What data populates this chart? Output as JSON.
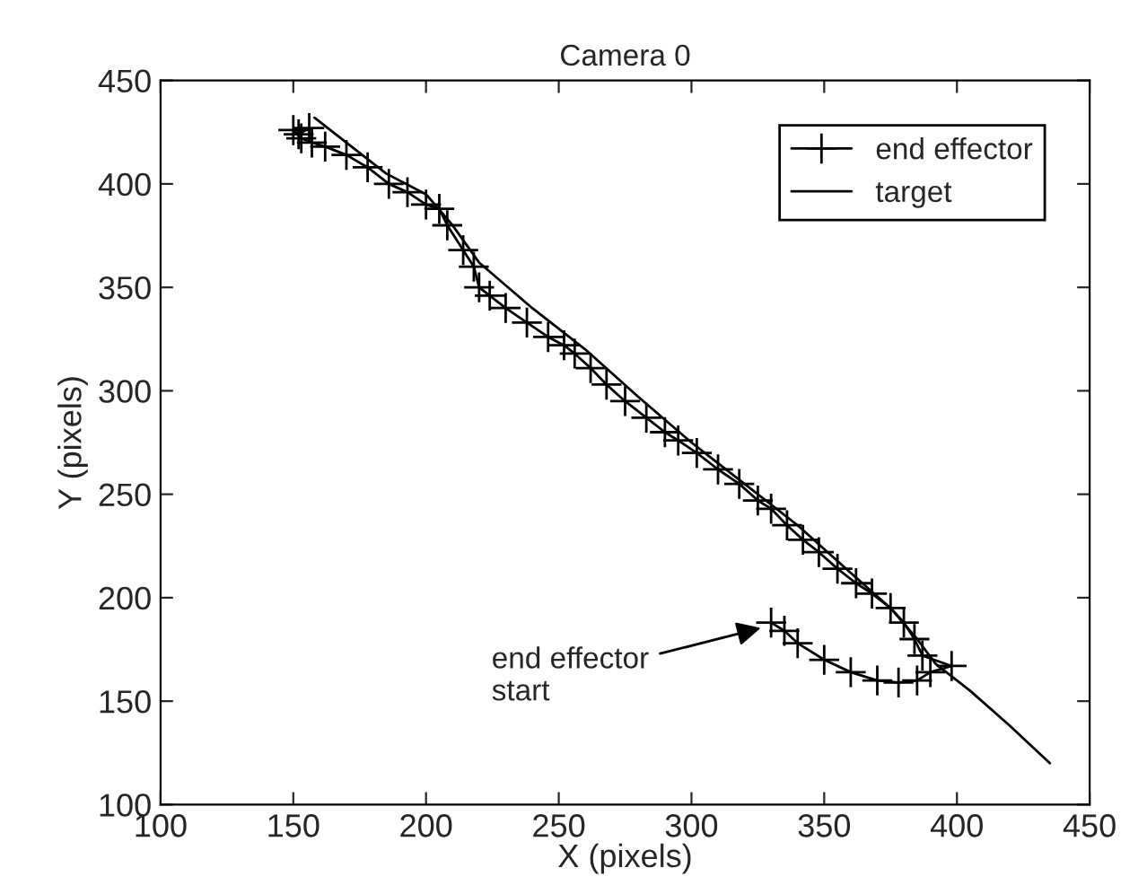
{
  "chart_data": {
    "type": "line",
    "title": "Camera 0",
    "xlabel": "X (pixels)",
    "ylabel": "Y (pixels)",
    "xlim": [
      100,
      450
    ],
    "ylim": [
      100,
      450
    ],
    "xticks": [
      100,
      150,
      200,
      250,
      300,
      350,
      400,
      450
    ],
    "yticks": [
      100,
      150,
      200,
      250,
      300,
      350,
      400,
      450
    ],
    "grid": false,
    "legend": "top right",
    "series": [
      {
        "name": "end effector",
        "color": "#000000",
        "marker": "cross",
        "line_style": "solid",
        "x": [
          330,
          335,
          340,
          350,
          360,
          370,
          378,
          385,
          390,
          398,
          387,
          384,
          380,
          375,
          368,
          362,
          355,
          348,
          342,
          336,
          330,
          325,
          318,
          310,
          302,
          295,
          290,
          283,
          275,
          268,
          262,
          256,
          252,
          246,
          238,
          230,
          224,
          220,
          218,
          214,
          208,
          205,
          200,
          193,
          186,
          178,
          170,
          162,
          157,
          153,
          150,
          152,
          156
        ],
        "values": [
          188,
          184,
          178,
          170,
          164,
          160,
          159,
          160,
          164,
          167,
          172,
          180,
          188,
          195,
          202,
          207,
          214,
          222,
          228,
          235,
          243,
          247,
          255,
          262,
          270,
          276,
          280,
          287,
          295,
          303,
          311,
          318,
          322,
          326,
          333,
          340,
          346,
          350,
          360,
          368,
          380,
          388,
          390,
          396,
          400,
          408,
          414,
          418,
          420,
          422,
          426,
          424,
          427
        ]
      },
      {
        "name": "target",
        "color": "#000000",
        "marker": "none",
        "line_style": "solid",
        "x": [
          158,
          170,
          185,
          200,
          210,
          220,
          240,
          260,
          280,
          300,
          320,
          340,
          360,
          375,
          385,
          392,
          405,
          420,
          435
        ],
        "values": [
          432,
          420,
          405,
          395,
          380,
          362,
          340,
          320,
          297,
          275,
          255,
          235,
          212,
          195,
          180,
          168,
          155,
          138,
          120
        ]
      }
    ],
    "annotations": [
      {
        "text": "end effector\nstart",
        "x": 328,
        "y": 186
      }
    ]
  }
}
